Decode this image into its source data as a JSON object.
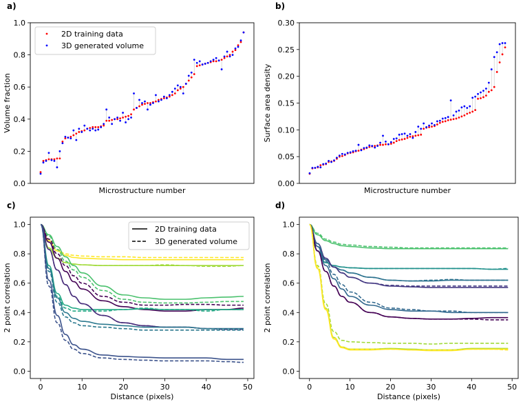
{
  "chart_data": [
    {
      "panel": "a)",
      "type": "scatter",
      "xlabel": "Microstructure number",
      "ylabel": "Volume fraction",
      "ylim": [
        0,
        1.0
      ],
      "y_ticks": [
        "0.0",
        "0.2",
        "0.4",
        "0.6",
        "0.8",
        "1.0"
      ],
      "y_tick_values": [
        0,
        0.2,
        0.4,
        0.6,
        0.8,
        1.0
      ],
      "legend": {
        "placement": "top-left",
        "entries": [
          "2D training data",
          "3D generated volume"
        ]
      },
      "series": [
        {
          "name": "2D training data",
          "color": "#ff0000",
          "values": [
            0.07,
            0.14,
            0.145,
            0.15,
            0.15,
            0.15,
            0.155,
            0.155,
            0.26,
            0.28,
            0.285,
            0.29,
            0.3,
            0.31,
            0.32,
            0.325,
            0.33,
            0.34,
            0.345,
            0.35,
            0.35,
            0.35,
            0.355,
            0.36,
            0.39,
            0.39,
            0.395,
            0.4,
            0.4,
            0.405,
            0.41,
            0.415,
            0.42,
            0.43,
            0.46,
            0.47,
            0.48,
            0.49,
            0.495,
            0.5,
            0.5,
            0.505,
            0.51,
            0.52,
            0.525,
            0.53,
            0.535,
            0.54,
            0.55,
            0.56,
            0.58,
            0.59,
            0.6,
            0.62,
            0.64,
            0.66,
            0.68,
            0.73,
            0.735,
            0.74,
            0.745,
            0.75,
            0.755,
            0.76,
            0.76,
            0.765,
            0.77,
            0.78,
            0.79,
            0.8,
            0.82,
            0.83,
            0.86,
            0.88,
            0.94
          ]
        },
        {
          "name": "3D generated volume",
          "color": "#0000ff",
          "values": [
            0.06,
            0.13,
            0.14,
            0.19,
            0.145,
            0.14,
            0.1,
            0.2,
            0.25,
            0.29,
            0.285,
            0.28,
            0.33,
            0.27,
            0.34,
            0.32,
            0.36,
            0.34,
            0.33,
            0.34,
            0.33,
            0.335,
            0.35,
            0.37,
            0.46,
            0.41,
            0.37,
            0.4,
            0.41,
            0.39,
            0.44,
            0.38,
            0.4,
            0.41,
            0.56,
            0.47,
            0.52,
            0.5,
            0.51,
            0.46,
            0.49,
            0.5,
            0.55,
            0.51,
            0.52,
            0.54,
            0.53,
            0.55,
            0.57,
            0.59,
            0.61,
            0.6,
            0.56,
            0.62,
            0.67,
            0.69,
            0.77,
            0.75,
            0.76,
            0.74,
            0.745,
            0.75,
            0.76,
            0.77,
            0.78,
            0.765,
            0.71,
            0.79,
            0.82,
            0.79,
            0.8,
            0.84,
            0.85,
            0.89,
            0.94
          ]
        }
      ]
    },
    {
      "panel": "b)",
      "type": "scatter",
      "xlabel": "Microstructure number",
      "ylabel": "Surface area density",
      "ylim": [
        0,
        0.3
      ],
      "y_ticks": [
        "0.00",
        "0.05",
        "0.10",
        "0.15",
        "0.20",
        "0.25",
        "0.30"
      ],
      "y_tick_values": [
        0,
        0.05,
        0.1,
        0.15,
        0.2,
        0.25,
        0.3
      ],
      "series": [
        {
          "name": "2D training data",
          "color": "#ff0000",
          "values": [
            0.018,
            0.028,
            0.029,
            0.03,
            0.034,
            0.035,
            0.036,
            0.04,
            0.041,
            0.042,
            0.046,
            0.05,
            0.051,
            0.053,
            0.056,
            0.057,
            0.058,
            0.06,
            0.061,
            0.063,
            0.064,
            0.066,
            0.068,
            0.069,
            0.07,
            0.071,
            0.072,
            0.072,
            0.073,
            0.073,
            0.074,
            0.076,
            0.079,
            0.081,
            0.082,
            0.083,
            0.085,
            0.087,
            0.088,
            0.089,
            0.09,
            0.091,
            0.102,
            0.104,
            0.105,
            0.106,
            0.107,
            0.11,
            0.113,
            0.115,
            0.116,
            0.118,
            0.119,
            0.12,
            0.121,
            0.123,
            0.125,
            0.127,
            0.13,
            0.132,
            0.134,
            0.137,
            0.158,
            0.159,
            0.161,
            0.164,
            0.171,
            0.174,
            0.18,
            0.208,
            0.226,
            0.241,
            0.254
          ]
        },
        {
          "name": "3D generated volume",
          "color": "#0000ff",
          "values": [
            0.019,
            0.029,
            0.029,
            0.031,
            0.03,
            0.036,
            0.037,
            0.042,
            0.04,
            0.043,
            0.048,
            0.052,
            0.055,
            0.054,
            0.057,
            0.058,
            0.06,
            0.061,
            0.072,
            0.062,
            0.066,
            0.067,
            0.071,
            0.07,
            0.067,
            0.07,
            0.076,
            0.089,
            0.078,
            0.073,
            0.077,
            0.083,
            0.084,
            0.091,
            0.092,
            0.093,
            0.089,
            0.092,
            0.085,
            0.096,
            0.106,
            0.102,
            0.112,
            0.105,
            0.108,
            0.112,
            0.109,
            0.116,
            0.117,
            0.121,
            0.122,
            0.124,
            0.155,
            0.127,
            0.134,
            0.136,
            0.142,
            0.144,
            0.141,
            0.144,
            0.16,
            0.162,
            0.167,
            0.17,
            0.173,
            0.177,
            0.188,
            0.213,
            0.236,
            0.245,
            0.26,
            0.262,
            0.262
          ]
        }
      ]
    },
    {
      "panel": "c)",
      "type": "line",
      "xlabel": "Distance (pixels)",
      "ylabel": "2 point correlation",
      "xlim": [
        -2.5,
        51.5
      ],
      "ylim": [
        -0.05,
        1.05
      ],
      "x_ticks": [
        "0",
        "10",
        "20",
        "30",
        "40",
        "50"
      ],
      "x_tick_values": [
        0,
        10,
        20,
        30,
        40,
        50
      ],
      "y_ticks": [
        "0.0",
        "0.2",
        "0.4",
        "0.6",
        "0.8",
        "1.0"
      ],
      "y_tick_values": [
        0,
        0.2,
        0.4,
        0.6,
        0.8,
        1.0
      ],
      "legend": {
        "placement": "top-right",
        "entries": [
          "2D training data",
          "3D generated volume"
        ]
      },
      "x": [
        0,
        2,
        4,
        6,
        8,
        10,
        15,
        20,
        25,
        30,
        35,
        40,
        45,
        49
      ],
      "series": [
        {
          "color": "#fde725",
          "solid": [
            1,
            0.89,
            0.82,
            0.79,
            0.775,
            0.77,
            0.765,
            0.76,
            0.76,
            0.76,
            0.76,
            0.76,
            0.76,
            0.76
          ],
          "dashed": [
            1,
            0.9,
            0.83,
            0.8,
            0.79,
            0.785,
            0.78,
            0.78,
            0.775,
            0.775,
            0.775,
            0.775,
            0.775,
            0.775
          ]
        },
        {
          "color": "#a0da39",
          "solid": [
            1,
            0.84,
            0.77,
            0.74,
            0.73,
            0.725,
            0.72,
            0.72,
            0.72,
            0.72,
            0.72,
            0.72,
            0.72,
            0.72
          ],
          "dashed": [
            1,
            0.84,
            0.77,
            0.74,
            0.73,
            0.725,
            0.72,
            0.72,
            0.72,
            0.725,
            0.72,
            0.715,
            0.715,
            0.72
          ]
        },
        {
          "color": "#4ac16d",
          "solid": [
            1,
            0.93,
            0.85,
            0.78,
            0.72,
            0.67,
            0.58,
            0.52,
            0.5,
            0.49,
            0.49,
            0.5,
            0.505,
            0.51
          ],
          "dashed": [
            1,
            0.92,
            0.83,
            0.75,
            0.69,
            0.64,
            0.55,
            0.49,
            0.47,
            0.465,
            0.465,
            0.47,
            0.475,
            0.475
          ]
        },
        {
          "color": "#440154",
          "solid": [
            1,
            0.88,
            0.77,
            0.68,
            0.61,
            0.56,
            0.48,
            0.44,
            0.42,
            0.41,
            0.41,
            0.42,
            0.42,
            0.43
          ],
          "dashed": [
            1,
            0.9,
            0.8,
            0.72,
            0.65,
            0.6,
            0.51,
            0.47,
            0.45,
            0.45,
            0.455,
            0.455,
            0.45,
            0.45
          ]
        },
        {
          "color": "#22a884",
          "solid": [
            1,
            0.72,
            0.53,
            0.45,
            0.43,
            0.42,
            0.42,
            0.42,
            0.425,
            0.42,
            0.42,
            0.42,
            0.42,
            0.42
          ],
          "dashed": [
            1,
            0.7,
            0.51,
            0.43,
            0.41,
            0.41,
            0.41,
            0.42,
            0.43,
            0.42,
            0.42,
            0.41,
            0.42,
            0.42
          ]
        },
        {
          "color": "#472c7a",
          "solid": [
            1,
            0.83,
            0.69,
            0.59,
            0.51,
            0.46,
            0.38,
            0.33,
            0.31,
            0.3,
            0.3,
            0.29,
            0.29,
            0.29
          ],
          "dashed": [
            1,
            0.83,
            0.69,
            0.59,
            0.51,
            0.46,
            0.38,
            0.33,
            0.31,
            0.3,
            0.3,
            0.29,
            0.285,
            0.285
          ]
        },
        {
          "color": "#2a788e",
          "solid": [
            1,
            0.7,
            0.5,
            0.4,
            0.36,
            0.34,
            0.32,
            0.31,
            0.3,
            0.3,
            0.3,
            0.29,
            0.29,
            0.29
          ],
          "dashed": [
            1,
            0.68,
            0.47,
            0.37,
            0.33,
            0.31,
            0.3,
            0.29,
            0.28,
            0.28,
            0.28,
            0.28,
            0.28,
            0.28
          ]
        },
        {
          "color": "#3b528b",
          "solid": [
            1,
            0.62,
            0.38,
            0.25,
            0.18,
            0.15,
            0.11,
            0.1,
            0.095,
            0.09,
            0.09,
            0.09,
            0.08,
            0.08
          ],
          "dashed": [
            1,
            0.58,
            0.33,
            0.21,
            0.15,
            0.12,
            0.09,
            0.08,
            0.075,
            0.07,
            0.07,
            0.07,
            0.065,
            0.06
          ]
        }
      ]
    },
    {
      "panel": "d)",
      "type": "line",
      "xlabel": "Distance (pixels)",
      "ylabel": "2 point correlation",
      "xlim": [
        -2.5,
        51.5
      ],
      "ylim": [
        -0.05,
        1.05
      ],
      "x_ticks": [
        "0",
        "10",
        "20",
        "30",
        "40",
        "50"
      ],
      "x_tick_values": [
        0,
        10,
        20,
        30,
        40,
        50
      ],
      "y_ticks": [
        "0.0",
        "0.2",
        "0.4",
        "0.6",
        "0.8",
        "1.0"
      ],
      "y_tick_values": [
        0,
        0.2,
        0.4,
        0.6,
        0.8,
        1.0
      ],
      "x": [
        0,
        2,
        4,
        6,
        8,
        10,
        15,
        20,
        25,
        30,
        35,
        40,
        45,
        49
      ],
      "series": [
        {
          "color": "#4ac16d",
          "solid": [
            1,
            0.93,
            0.89,
            0.87,
            0.855,
            0.85,
            0.84,
            0.835,
            0.835,
            0.835,
            0.835,
            0.835,
            0.835,
            0.835
          ],
          "dashed": [
            1,
            0.94,
            0.9,
            0.88,
            0.865,
            0.86,
            0.85,
            0.845,
            0.84,
            0.84,
            0.84,
            0.84,
            0.84,
            0.84
          ]
        },
        {
          "color": "#21918c",
          "solid": [
            1,
            0.82,
            0.74,
            0.72,
            0.71,
            0.705,
            0.7,
            0.7,
            0.7,
            0.7,
            0.7,
            0.7,
            0.695,
            0.695
          ],
          "dashed": [
            1,
            0.82,
            0.74,
            0.72,
            0.71,
            0.705,
            0.7,
            0.7,
            0.7,
            0.7,
            0.7,
            0.7,
            0.695,
            0.7
          ]
        },
        {
          "color": "#2c728e",
          "solid": [
            1,
            0.85,
            0.76,
            0.71,
            0.69,
            0.67,
            0.64,
            0.62,
            0.615,
            0.615,
            0.62,
            0.62,
            0.62,
            0.62
          ],
          "dashed": [
            1,
            0.85,
            0.76,
            0.71,
            0.69,
            0.67,
            0.64,
            0.62,
            0.615,
            0.62,
            0.625,
            0.62,
            0.62,
            0.62
          ]
        },
        {
          "color": "#443983",
          "solid": [
            1,
            0.87,
            0.77,
            0.71,
            0.67,
            0.64,
            0.6,
            0.58,
            0.575,
            0.57,
            0.57,
            0.57,
            0.57,
            0.57
          ],
          "dashed": [
            1,
            0.87,
            0.77,
            0.71,
            0.67,
            0.64,
            0.6,
            0.585,
            0.58,
            0.58,
            0.58,
            0.58,
            0.58,
            0.58
          ]
        },
        {
          "color": "#31688e",
          "solid": [
            1,
            0.85,
            0.72,
            0.63,
            0.56,
            0.51,
            0.45,
            0.42,
            0.41,
            0.41,
            0.4,
            0.4,
            0.4,
            0.4
          ],
          "dashed": [
            1,
            0.87,
            0.75,
            0.66,
            0.59,
            0.54,
            0.47,
            0.43,
            0.42,
            0.41,
            0.41,
            0.4,
            0.4,
            0.4
          ]
        },
        {
          "color": "#440154",
          "solid": [
            1,
            0.82,
            0.68,
            0.58,
            0.51,
            0.47,
            0.4,
            0.37,
            0.36,
            0.355,
            0.355,
            0.36,
            0.365,
            0.365
          ],
          "dashed": [
            1,
            0.82,
            0.68,
            0.58,
            0.51,
            0.47,
            0.4,
            0.37,
            0.36,
            0.355,
            0.355,
            0.355,
            0.35,
            0.35
          ]
        },
        {
          "color": "#a0da39",
          "solid": [
            1,
            0.7,
            0.43,
            0.23,
            0.165,
            0.15,
            0.15,
            0.155,
            0.15,
            0.145,
            0.145,
            0.155,
            0.155,
            0.155
          ],
          "dashed": [
            1,
            0.72,
            0.46,
            0.27,
            0.21,
            0.2,
            0.195,
            0.19,
            0.19,
            0.185,
            0.19,
            0.19,
            0.19,
            0.19
          ]
        },
        {
          "color": "#fde725",
          "solid": [
            1,
            0.7,
            0.42,
            0.22,
            0.16,
            0.145,
            0.145,
            0.15,
            0.145,
            0.14,
            0.14,
            0.15,
            0.15,
            0.15
          ],
          "dashed": [
            1,
            0.71,
            0.43,
            0.23,
            0.165,
            0.15,
            0.15,
            0.15,
            0.145,
            0.145,
            0.145,
            0.15,
            0.15,
            0.145
          ]
        }
      ]
    }
  ]
}
